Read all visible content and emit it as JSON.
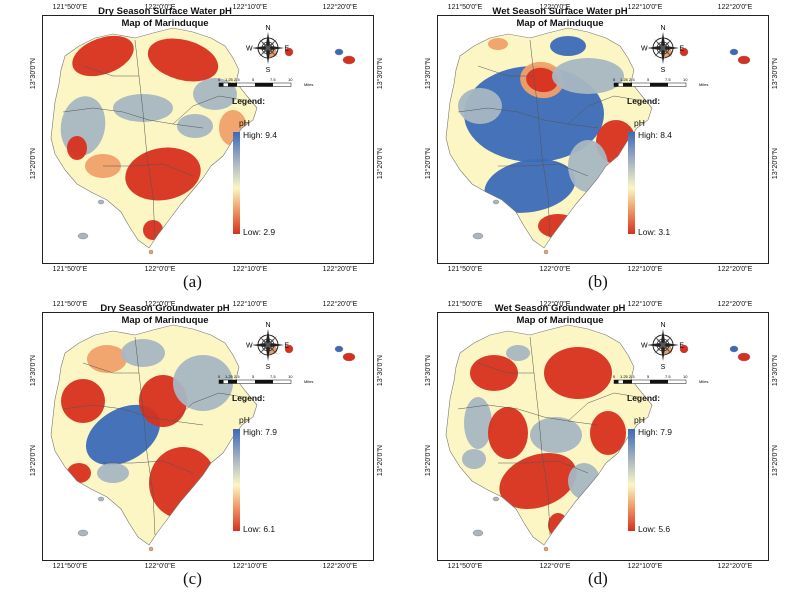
{
  "panels": [
    {
      "caption": "(a)",
      "title_line1": "Dry Season Surface Water pH",
      "title_line2": "Map of Marinduque",
      "legend_title": "Legend:",
      "legend_ph": "pH",
      "high": "High: 9.4",
      "low": "Low: 2.9",
      "ticks_top": [
        "121°50'0\"E",
        "122°0'0\"E",
        "122°10'0\"E",
        "122°20'0\"E"
      ],
      "ticks_bottom": [
        "121°50'0\"E",
        "122°0'0\"E",
        "122°10'0\"E",
        "122°20'0\"E"
      ],
      "ticks_left": [
        "13°30'0\"N",
        "13°20'0\"N"
      ],
      "ticks_right": [
        "13°30'0\"N",
        "13°20'0\"N"
      ],
      "scheme": "dry_surface"
    },
    {
      "caption": "(b)",
      "title_line1": "Wet Season Surface Water pH",
      "title_line2": "Map of Marinduque",
      "legend_title": "Legend:",
      "legend_ph": "pH",
      "high": "High: 8.4",
      "low": "Low: 3.1",
      "ticks_top": [
        "121°50'0\"E",
        "122°0'0\"E",
        "122°10'0\"E",
        "122°20'0\"E"
      ],
      "ticks_bottom": [
        "121°50'0\"E",
        "122°0'0\"E",
        "122°10'0\"E",
        "122°20'0\"E"
      ],
      "ticks_left": [
        "13°30'0\"N",
        "13°20'0\"N"
      ],
      "ticks_right": [
        "13°30'0\"N",
        "13°20'0\"N"
      ],
      "scheme": "wet_surface"
    },
    {
      "caption": "(c)",
      "title_line1": "Dry Season Groundwater pH",
      "title_line2": "Map of Marinduque",
      "legend_title": "Legend:",
      "legend_ph": "pH",
      "high": "High: 7.9",
      "low": "Low: 6.1",
      "ticks_top": [
        "121°50'0\"E",
        "122°0'0\"E",
        "122°10'0\"E",
        "122°20'0\"E"
      ],
      "ticks_bottom": [
        "121°50'0\"E",
        "122°0'0\"E",
        "122°10'0\"E",
        "122°20'0\"E"
      ],
      "ticks_left": [
        "13°30'0\"N",
        "13°20'0\"N"
      ],
      "ticks_right": [
        "13°30'0\"N",
        "13°20'0\"N"
      ],
      "scheme": "dry_ground"
    },
    {
      "caption": "(d)",
      "title_line1": "Wet Season Groundwater pH",
      "title_line2": "Map of Marinduque",
      "legend_title": "Legend:",
      "legend_ph": "pH",
      "high": "High: 7.9",
      "low": "Low: 5.6",
      "ticks_top": [
        "121°50'0\"E",
        "122°0'0\"E",
        "122°10'0\"E",
        "122°20'0\"E"
      ],
      "ticks_bottom": [
        "121°50'0\"E",
        "122°0'0\"E",
        "122°10'0\"E",
        "122°20'0\"E"
      ],
      "ticks_left": [
        "13°30'0\"N",
        "13°20'0\"N"
      ],
      "ticks_right": [
        "13°30'0\"N",
        "13°20'0\"N"
      ],
      "scheme": "wet_ground"
    }
  ],
  "compass": {
    "n": "N",
    "s": "S",
    "e": "E",
    "w": "W"
  },
  "scale": {
    "labels": [
      "0",
      "1.25",
      "2.5",
      "5",
      "7.5",
      "10"
    ],
    "unit": "Miles"
  },
  "colors": {
    "high": "#3b6ab8",
    "mid_high": "#a8b6c2",
    "mid": "#fbf6c4",
    "mid_low": "#f0a06a",
    "low": "#d7301f"
  }
}
